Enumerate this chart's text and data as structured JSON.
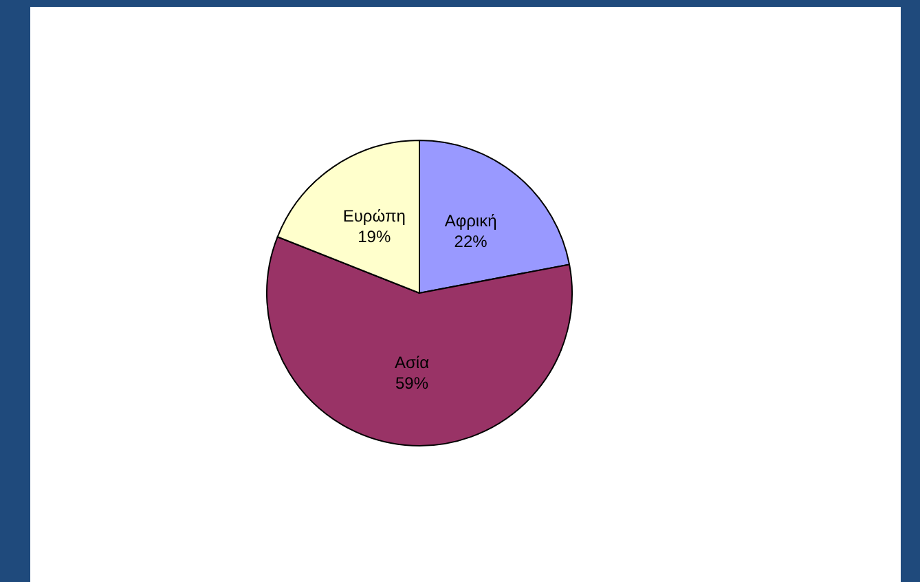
{
  "chart_data": {
    "type": "pie",
    "categories": [
      "Αφρική",
      "Ασία",
      "Ευρώπη"
    ],
    "values": [
      22,
      59,
      19
    ],
    "colors": [
      "#9999ff",
      "#993366",
      "#ffffcc"
    ],
    "value_labels": [
      "22%",
      "59%",
      "19%"
    ],
    "legend": false
  }
}
